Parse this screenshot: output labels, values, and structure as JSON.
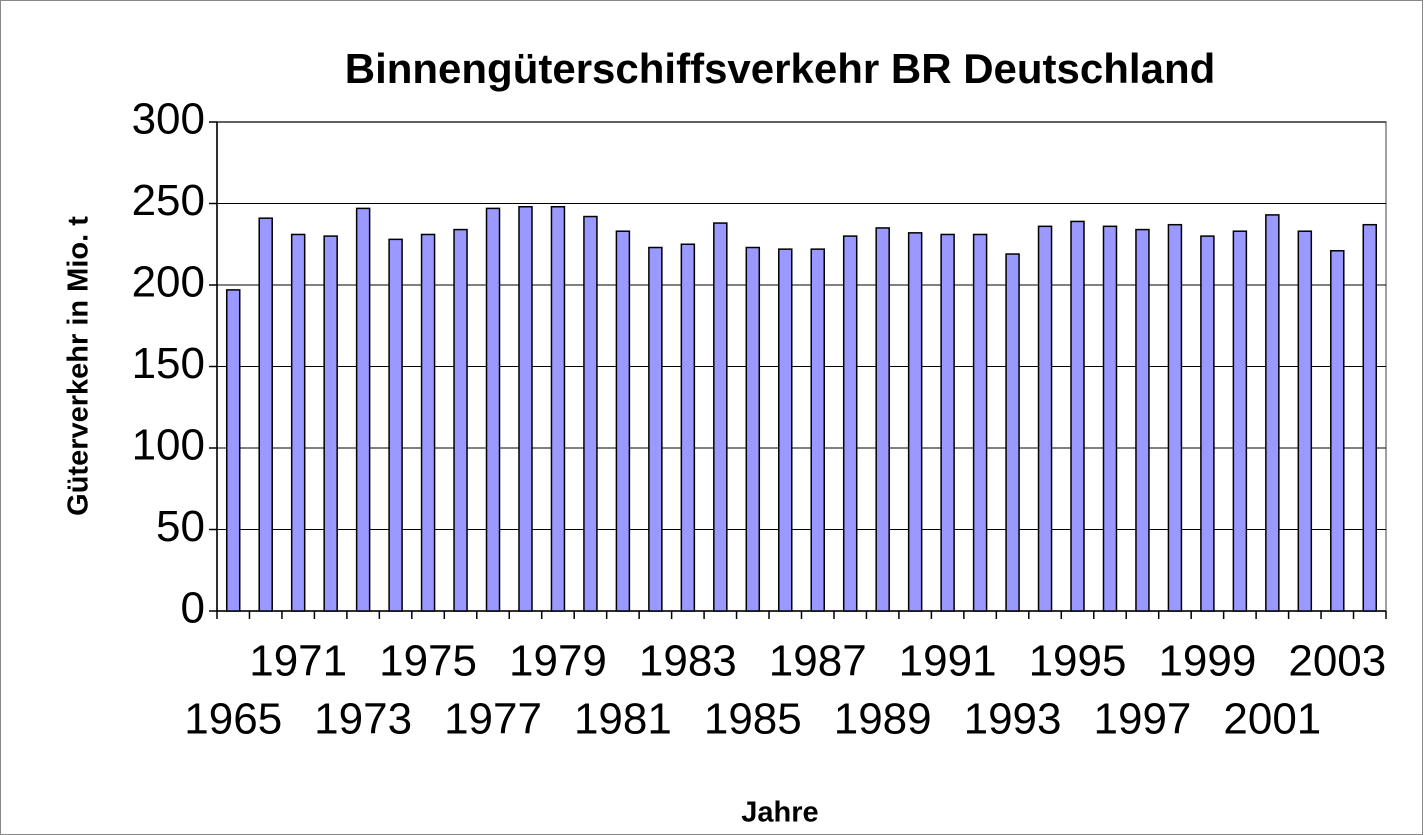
{
  "chart_data": {
    "type": "bar",
    "title": "Binnengüterschiffsverkehr BR Deutschland",
    "y_label": "Güterverkehr in Mio. t",
    "x_label": "Jahre",
    "categories": [
      "1965",
      null,
      "1971",
      null,
      "1973",
      null,
      "1975",
      null,
      "1977",
      null,
      "1979",
      null,
      "1981",
      null,
      "1983",
      null,
      "1985",
      null,
      "1987",
      null,
      "1989",
      null,
      "1991",
      null,
      "1993",
      null,
      "1995",
      null,
      "1997",
      null,
      "1999",
      null,
      "2001",
      null,
      "2003",
      null
    ],
    "values": [
      197,
      241,
      231,
      230,
      247,
      228,
      231,
      234,
      247,
      248,
      248,
      242,
      233,
      223,
      225,
      238,
      223,
      222,
      222,
      230,
      235,
      232,
      231,
      231,
      219,
      236,
      239,
      236,
      234,
      237,
      230,
      233,
      243,
      233,
      221,
      237
    ],
    "color": "#9999ff",
    "ylim": [
      0,
      300
    ],
    "yticks": [
      0,
      50,
      100,
      150,
      200,
      250,
      300
    ],
    "grid": true
  }
}
